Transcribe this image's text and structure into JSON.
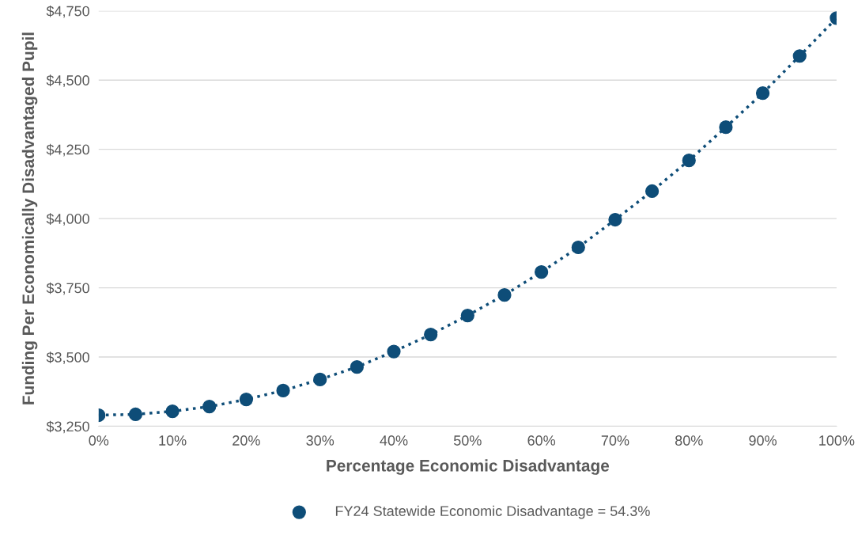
{
  "chart_data": {
    "type": "scatter",
    "xlabel": "Percentage Economic Disadvantage",
    "ylabel": "Funding Per Economically Disadvantaged Pupil",
    "x": [
      0,
      5,
      10,
      15,
      20,
      25,
      30,
      35,
      40,
      45,
      50,
      55,
      60,
      65,
      70,
      75,
      80,
      85,
      90,
      95,
      100
    ],
    "series": [
      {
        "name": "FY24 Statewide Economic Disadvantage = 54.3%",
        "color": "#0e4d78",
        "marker": "circle",
        "values": [
          3290,
          3293,
          3304,
          3321,
          3347,
          3379,
          3419,
          3464,
          3520,
          3581,
          3650,
          3724,
          3807,
          3896,
          3996,
          4099,
          4210,
          4330,
          4453,
          4587,
          4724
        ]
      },
      {
        "type": "line",
        "color": "#0e4d78",
        "line_style": "dotted",
        "marker": "none",
        "values": [
          3290,
          3293,
          3304,
          3321,
          3347,
          3379,
          3419,
          3464,
          3520,
          3581,
          3650,
          3724,
          3807,
          3896,
          3996,
          4099,
          4210,
          4330,
          4453,
          4587,
          4724
        ]
      }
    ],
    "xlim": [
      0,
      100
    ],
    "xticks": [
      {
        "value": 0,
        "label": "0%"
      },
      {
        "value": 10,
        "label": "10%"
      },
      {
        "value": 20,
        "label": "20%"
      },
      {
        "value": 30,
        "label": "30%"
      },
      {
        "value": 40,
        "label": "40%"
      },
      {
        "value": 50,
        "label": "50%"
      },
      {
        "value": 60,
        "label": "60%"
      },
      {
        "value": 70,
        "label": "70%"
      },
      {
        "value": 80,
        "label": "80%"
      },
      {
        "value": 90,
        "label": "90%"
      },
      {
        "value": 100,
        "label": "100%"
      }
    ],
    "ylim": [
      3250,
      4750
    ],
    "yticks": [
      {
        "value": 3250,
        "label": "$3,250"
      },
      {
        "value": 3500,
        "label": "$3,500"
      },
      {
        "value": 3750,
        "label": "$3,750"
      },
      {
        "value": 4000,
        "label": "$4,000"
      },
      {
        "value": 4250,
        "label": "$4,250"
      },
      {
        "value": 4500,
        "label": "$4,500"
      },
      {
        "value": 4750,
        "label": "$4,750"
      }
    ],
    "grid": "y",
    "legend": "bottom"
  }
}
